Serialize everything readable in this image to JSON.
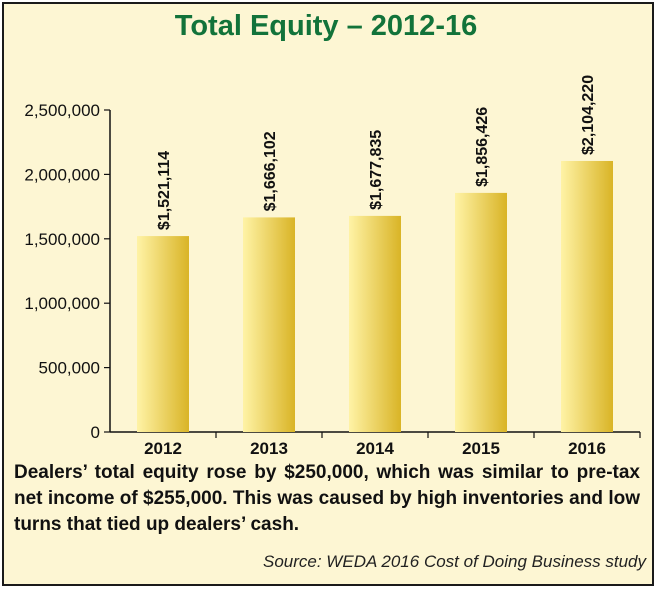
{
  "chart_data": {
    "type": "bar",
    "title": "Total Equity – 2012-16",
    "categories": [
      "2012",
      "2013",
      "2014",
      "2015",
      "2016"
    ],
    "values": [
      1521114,
      1666102,
      1677835,
      1856426,
      2104220
    ],
    "data_labels": [
      "$1,521,114",
      "$1,666,102",
      "$1,677,835",
      "$1,856,426",
      "$2,104,220"
    ],
    "yticks": [
      {
        "value": 0,
        "label": "0"
      },
      {
        "value": 500000,
        "label": "500,000"
      },
      {
        "value": 1000000,
        "label": "1,000,000"
      },
      {
        "value": 1500000,
        "label": "1,500,000"
      },
      {
        "value": 2000000,
        "label": "2,000,000"
      },
      {
        "value": 2500000,
        "label": "2,500,000"
      }
    ],
    "ylim": [
      0,
      2500000
    ],
    "xlabel": "",
    "ylabel": "",
    "grid": false,
    "bar_color_light": "#fff3a6",
    "bar_color_dark": "#d9b426"
  },
  "caption": "Dealers’ total equity rose by $250,000, which was similar to pre-tax net income of $255,000. This was caused by high inventories and low turns that tied up dealers’ cash.",
  "source": "Source: WEDA 2016 Cost of Doing Business study",
  "colors": {
    "title": "#12733a",
    "background": "#fdf6d3",
    "border": "#1a1a1a"
  }
}
